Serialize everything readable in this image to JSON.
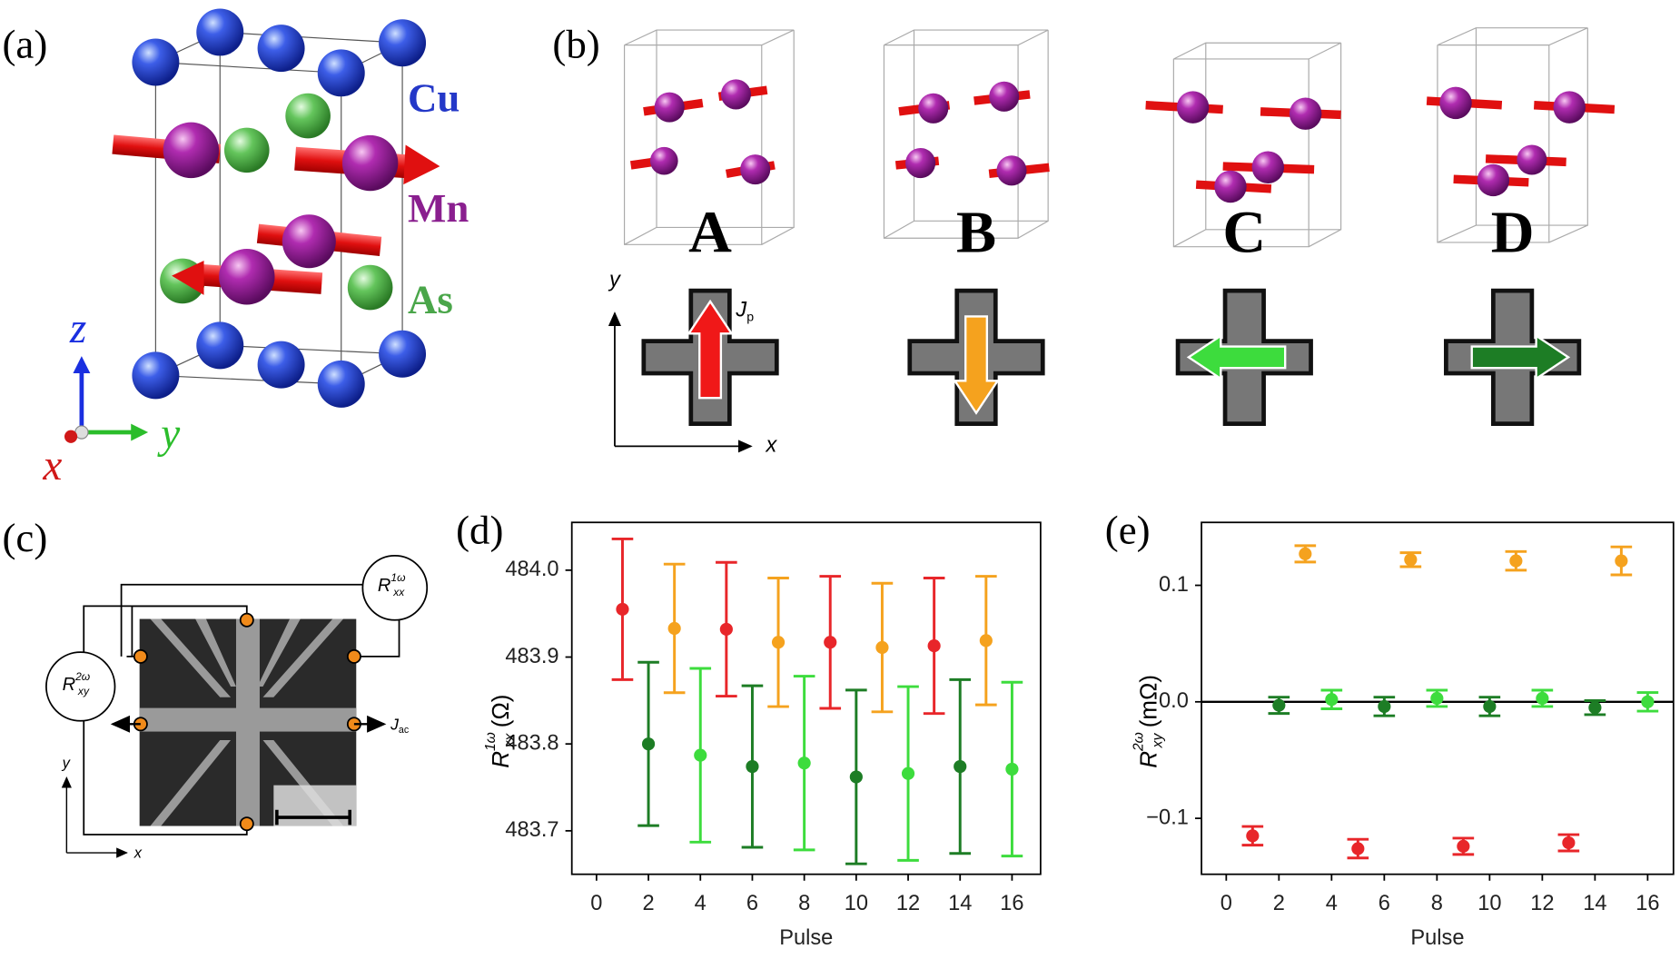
{
  "figure": {
    "a": {
      "panel_label": "(a)",
      "atoms": [
        "Cu",
        "Mn",
        "As"
      ],
      "axes": [
        "z",
        "y",
        "x"
      ]
    },
    "b": {
      "panel_label": "(b)",
      "states": [
        "A",
        "B",
        "C",
        "D"
      ],
      "axes": [
        "y",
        "x"
      ],
      "current": {
        "symbol": "J",
        "sub": "p"
      }
    },
    "c": {
      "panel_label": "(c)",
      "rxx": {
        "symbol": "R",
        "sub": "xx",
        "sup": "1ω"
      },
      "rxy": {
        "symbol": "R",
        "sub": "xy",
        "sup": "2ω"
      },
      "current": {
        "symbol": "J",
        "sub": "ac"
      },
      "axes": [
        "y",
        "x"
      ]
    }
  },
  "chart_data": [
    {
      "type": "errorbar",
      "panel_label": "(d)",
      "xlabel": "Pulse",
      "ylabel": {
        "symbol": "R",
        "sub": "xx",
        "sup": "1ω",
        "unit": "(Ω)"
      },
      "xlim": [
        -0.95,
        17.1
      ],
      "ylim": [
        483.65,
        484.055
      ],
      "xticks": [
        0,
        2,
        4,
        6,
        8,
        10,
        12,
        14,
        16
      ],
      "yticks": [
        483.7,
        483.8,
        483.9,
        {
          "value": 484,
          "label": "484.0"
        }
      ],
      "zero_line": false,
      "series": [
        {
          "color": "#e8262a",
          "x": [
            1,
            5,
            9,
            13
          ],
          "values": [
            483.955,
            483.932,
            483.917,
            483.913
          ],
          "errors": [
            0.081,
            0.077,
            0.076,
            0.078
          ]
        },
        {
          "color": "#f5a21e",
          "x": [
            3,
            7,
            11,
            15
          ],
          "values": [
            483.933,
            483.917,
            483.911,
            483.919
          ],
          "errors": [
            0.074,
            0.074,
            0.074,
            0.074
          ]
        },
        {
          "color": "#1d7d25",
          "x": [
            2,
            6,
            10,
            14
          ],
          "values": [
            483.8,
            483.774,
            483.762,
            483.774
          ],
          "errors": [
            0.094,
            0.093,
            0.1,
            0.1
          ]
        },
        {
          "color": "#3ddc3d",
          "x": [
            4,
            8,
            12,
            16
          ],
          "values": [
            483.787,
            483.778,
            483.766,
            483.771
          ],
          "errors": [
            0.1,
            0.1,
            0.1,
            0.1
          ]
        }
      ]
    },
    {
      "type": "errorbar",
      "panel_label": "(e)",
      "xlabel": "Pulse",
      "ylabel": {
        "symbol": "R",
        "sub": "xy",
        "sup": "2ω",
        "unit": "(mΩ)"
      },
      "xlim": [
        -0.94,
        16.98
      ],
      "ylim": [
        -0.148,
        0.154
      ],
      "xticks": [
        0,
        2,
        4,
        6,
        8,
        10,
        12,
        14,
        16
      ],
      "yticks": [
        {
          "value": -0.1,
          "label": "−0.1"
        },
        {
          "value": 0,
          "label": "0.0"
        },
        0.1
      ],
      "zero_line": true,
      "series": [
        {
          "color": "#e8262a",
          "x": [
            1,
            5,
            9,
            13
          ],
          "values": [
            -0.115,
            -0.126,
            -0.124,
            -0.121
          ],
          "errors": [
            0.008,
            0.008,
            0.007,
            0.007
          ]
        },
        {
          "color": "#f5a21e",
          "x": [
            3,
            7,
            11,
            15
          ],
          "values": [
            0.127,
            0.122,
            0.121,
            0.121
          ],
          "errors": [
            0.007,
            0.006,
            0.008,
            0.012
          ]
        },
        {
          "color": "#1d7d25",
          "x": [
            2,
            6,
            10,
            14
          ],
          "values": [
            -0.003,
            -0.004,
            -0.004,
            -0.005
          ],
          "errors": [
            0.007,
            0.008,
            0.008,
            0.006
          ]
        },
        {
          "color": "#3ddc3d",
          "x": [
            4,
            8,
            12,
            16
          ],
          "values": [
            0.002,
            0.003,
            0.003,
            0.0
          ],
          "errors": [
            0.008,
            0.007,
            0.007,
            0.008
          ]
        }
      ]
    }
  ]
}
